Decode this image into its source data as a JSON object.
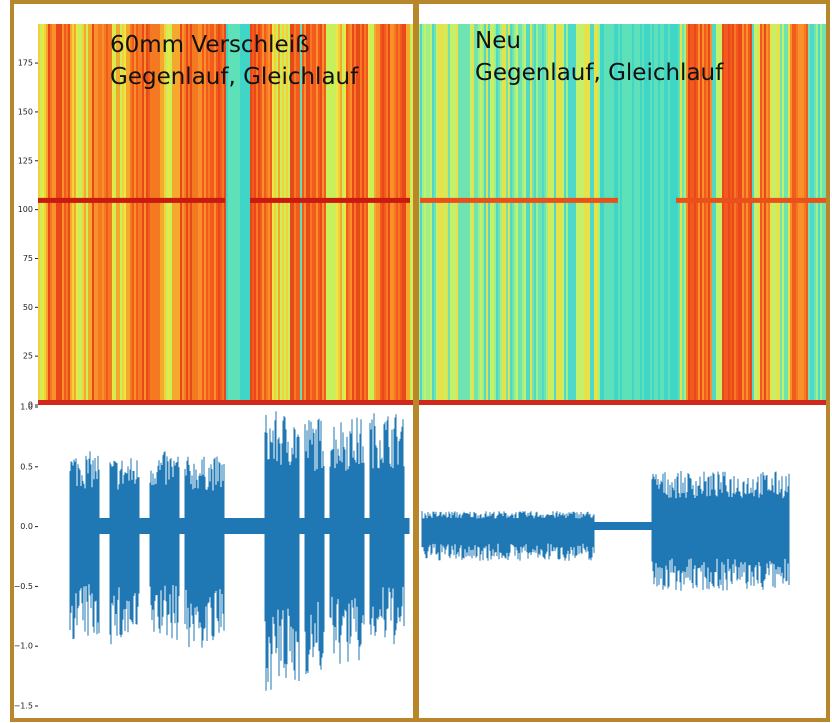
{
  "spectrogram": {
    "ylim": [
      0,
      195
    ],
    "yticks": [
      0,
      25,
      50,
      75,
      100,
      125,
      150,
      175
    ]
  },
  "waveform": {
    "ylim": [
      -1.55,
      1.0
    ],
    "yticks": [
      {
        "value": 1.0,
        "label": "1.0"
      },
      0.5,
      {
        "value": 0.0,
        "label": "0.0"
      },
      {
        "value": -0.5,
        "label": "−0.5"
      },
      {
        "value": -1.0,
        "label": "−1.0"
      },
      {
        "value": -1.5,
        "label": "−1.5"
      }
    ]
  },
  "annotations": [
    "60mm Verschleiß",
    "Gegenlauf, Gleichlauf",
    "Neu",
    "Gegenlauf, Gleichlauf"
  ]
}
